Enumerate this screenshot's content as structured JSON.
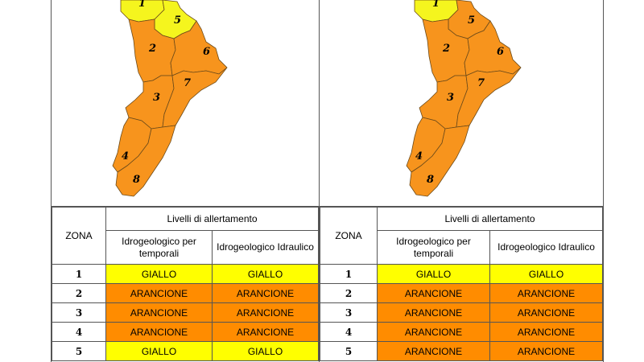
{
  "colors": {
    "giallo": "#ffff00",
    "arancione": "#ff8c00",
    "map_yellow": "#f5f51e",
    "map_orange": "#f7941d"
  },
  "left": {
    "map_labels": {
      "z1": "1",
      "z2": "2",
      "z3": "3",
      "z4": "4",
      "z5": "5",
      "z6": "6",
      "z7": "7",
      "z8": "8"
    },
    "table": {
      "zona_header": "ZONA",
      "levels_header": "Livelli di allertamento",
      "col1_header": "Idrogeologico per temporali",
      "col2_header": "Idrogeologico Idraulico",
      "rows": [
        {
          "zona": "1",
          "v1": "GIALLO",
          "v2": "GIALLO"
        },
        {
          "zona": "2",
          "v1": "ARANCIONE",
          "v2": "ARANCIONE"
        },
        {
          "zona": "3",
          "v1": "ARANCIONE",
          "v2": "ARANCIONE"
        },
        {
          "zona": "4",
          "v1": "ARANCIONE",
          "v2": "ARANCIONE"
        },
        {
          "zona": "5",
          "v1": "GIALLO",
          "v2": "GIALLO"
        }
      ]
    }
  },
  "right": {
    "map_labels": {
      "z1": "1",
      "z2": "2",
      "z3": "3",
      "z4": "4",
      "z5": "5",
      "z6": "6",
      "z7": "7",
      "z8": "8"
    },
    "table": {
      "zona_header": "ZONA",
      "levels_header": "Livelli di allertamento",
      "col1_header": "Idrogeologico per temporali",
      "col2_header": "Idrogeologico Idraulico",
      "rows": [
        {
          "zona": "1",
          "v1": "GIALLO",
          "v2": "GIALLO"
        },
        {
          "zona": "2",
          "v1": "ARANCIONE",
          "v2": "ARANCIONE"
        },
        {
          "zona": "3",
          "v1": "ARANCIONE",
          "v2": "ARANCIONE"
        },
        {
          "zona": "4",
          "v1": "ARANCIONE",
          "v2": "ARANCIONE"
        },
        {
          "zona": "5",
          "v1": "ARANCIONE",
          "v2": "ARANCIONE"
        }
      ]
    }
  }
}
